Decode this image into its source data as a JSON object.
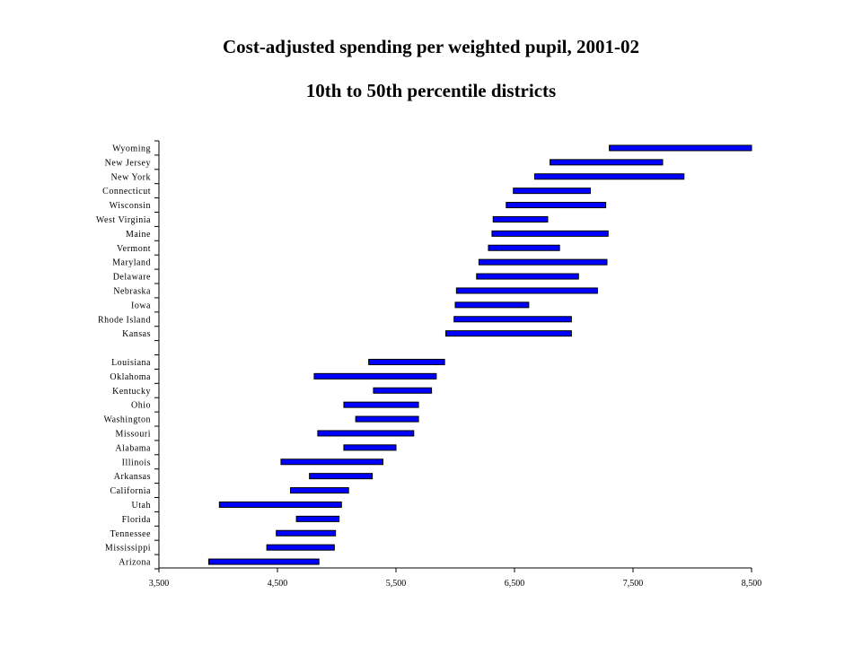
{
  "chart_data": {
    "type": "bar",
    "orientation": "horizontal",
    "title": "Cost-adjusted spending per weighted pupil, 2001-02",
    "subtitle": "10th to 50th percentile districts",
    "bar_color": "#0000ff",
    "xlim": [
      3500,
      8500
    ],
    "x_ticks": [
      "3,500",
      "4,500",
      "5,500",
      "6,500",
      "7,500",
      "8,500"
    ],
    "x_tick_values": [
      3500,
      4500,
      5500,
      6500,
      7500,
      8500
    ],
    "rows": [
      {
        "label": "Wyoming",
        "low": 7300,
        "high": 8500
      },
      {
        "label": "New Jersey",
        "low": 6800,
        "high": 7750
      },
      {
        "label": "New York",
        "low": 6670,
        "high": 7930
      },
      {
        "label": "Connecticut",
        "low": 6490,
        "high": 7140
      },
      {
        "label": "Wisconsin",
        "low": 6430,
        "high": 7270
      },
      {
        "label": "West Virginia",
        "low": 6320,
        "high": 6780
      },
      {
        "label": "Maine",
        "low": 6310,
        "high": 7290
      },
      {
        "label": "Vermont",
        "low": 6280,
        "high": 6880
      },
      {
        "label": "Maryland",
        "low": 6200,
        "high": 7280
      },
      {
        "label": "Delaware",
        "low": 6180,
        "high": 7040
      },
      {
        "label": "Nebraska",
        "low": 6010,
        "high": 7200
      },
      {
        "label": "Iowa",
        "low": 6000,
        "high": 6620
      },
      {
        "label": "Rhode Island",
        "low": 5990,
        "high": 6980
      },
      {
        "label": "Kansas",
        "low": 5920,
        "high": 6980
      },
      {
        "label": "",
        "low": null,
        "high": null
      },
      {
        "label": "Louisiana",
        "low": 5270,
        "high": 5910
      },
      {
        "label": "Oklahoma",
        "low": 4810,
        "high": 5840
      },
      {
        "label": "Kentucky",
        "low": 5310,
        "high": 5800
      },
      {
        "label": "Ohio",
        "low": 5060,
        "high": 5690
      },
      {
        "label": "Washington",
        "low": 5160,
        "high": 5690
      },
      {
        "label": "Missouri",
        "low": 4840,
        "high": 5650
      },
      {
        "label": "Alabama",
        "low": 5060,
        "high": 5500
      },
      {
        "label": "Illinois",
        "low": 4530,
        "high": 5390
      },
      {
        "label": "Arkansas",
        "low": 4770,
        "high": 5300
      },
      {
        "label": "California",
        "low": 4610,
        "high": 5100
      },
      {
        "label": "Utah",
        "low": 4010,
        "high": 5040
      },
      {
        "label": "Florida",
        "low": 4660,
        "high": 5020
      },
      {
        "label": "Tennessee",
        "low": 4490,
        "high": 4990
      },
      {
        "label": "Mississippi",
        "low": 4410,
        "high": 4980
      },
      {
        "label": "Arizona",
        "low": 3920,
        "high": 4850
      }
    ]
  }
}
